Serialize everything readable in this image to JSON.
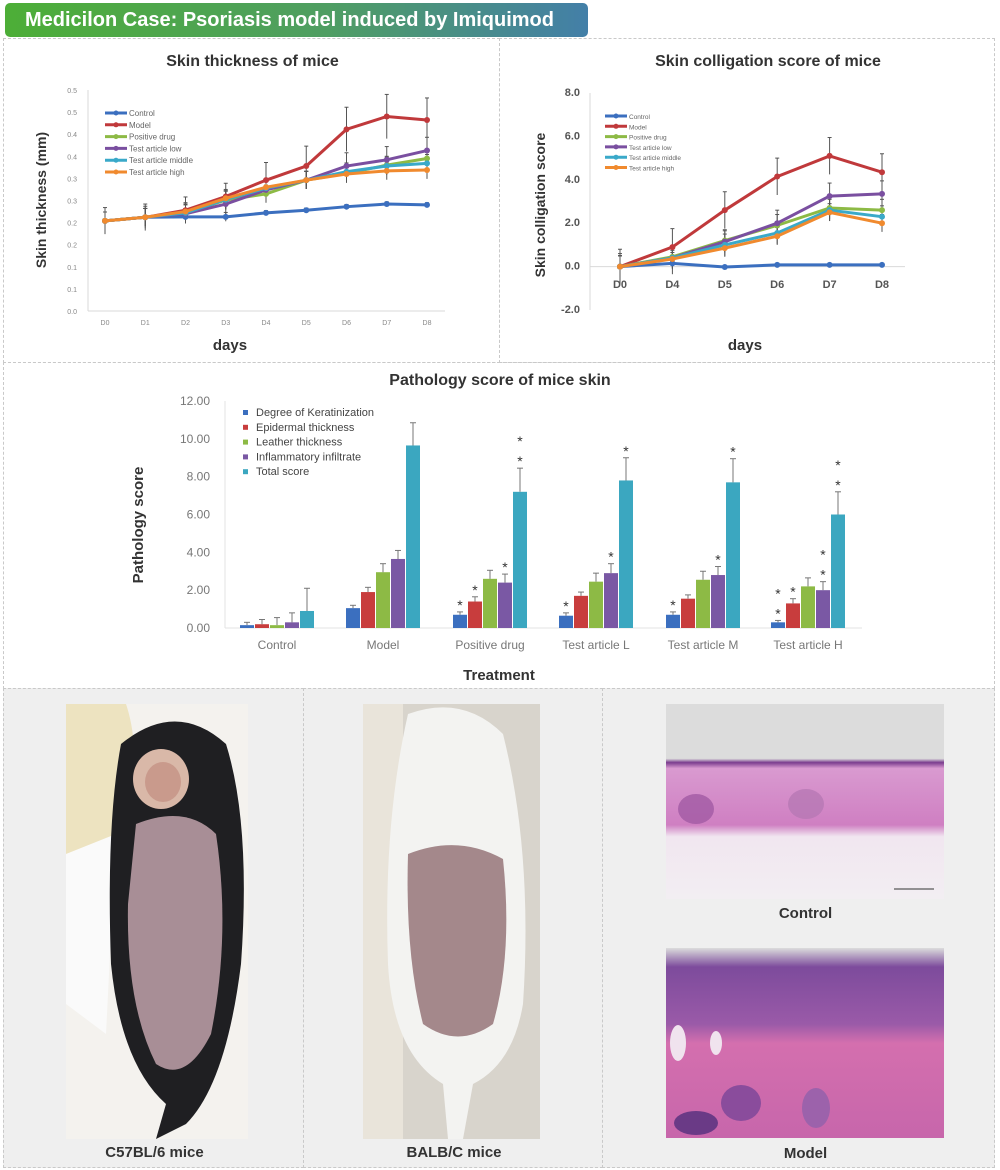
{
  "banner": {
    "title": "Medicilon Case: Psoriasis model induced by Imiquimod",
    "colors": [
      "#4dae37",
      "#437fa8"
    ]
  },
  "chart_data": [
    {
      "type": "line",
      "title": "Skin thickness of mice",
      "xlabel": "days",
      "ylabel": "Skin thickness (mm)",
      "categories": [
        "D0",
        "D1",
        "D2",
        "D3",
        "D4",
        "D5",
        "D6",
        "D7",
        "D8"
      ],
      "ylim": [
        0,
        0.5
      ],
      "ytick_labels": [
        "0.0",
        "0.1",
        "0.1",
        "0.2",
        "0.2",
        "0.3",
        "0.3",
        "0.4",
        "0.4",
        "0.5",
        "0.5"
      ],
      "legend": "top-left",
      "grid": false,
      "series": [
        {
          "name": "Control",
          "color": "#3b6fbf",
          "values": [
            0.204,
            0.212,
            0.213,
            0.213,
            0.222,
            0.228,
            0.236,
            0.242,
            0.24
          ],
          "errors": [
            0.03,
            0.03,
            0.01,
            0.01,
            0.005,
            0.005,
            0.005,
            0.005,
            0.005
          ]
        },
        {
          "name": "Model",
          "color": "#c0393b",
          "values": [
            0.204,
            0.212,
            0.228,
            0.259,
            0.296,
            0.328,
            0.411,
            0.44,
            0.432
          ],
          "errors": [
            0.02,
            0.025,
            0.03,
            0.03,
            0.04,
            0.045,
            0.05,
            0.05,
            0.05
          ]
        },
        {
          "name": "Positive drug",
          "color": "#8dba45",
          "values": [
            0.204,
            0.212,
            0.222,
            0.251,
            0.265,
            0.296,
            0.311,
            0.33,
            0.345
          ],
          "errors": [
            0.02,
            0.02,
            0.02,
            0.02,
            0.02,
            0.02,
            0.02,
            0.02,
            0.02
          ]
        },
        {
          "name": "Test article low",
          "color": "#7a4fa0",
          "values": [
            0.204,
            0.212,
            0.22,
            0.242,
            0.274,
            0.296,
            0.328,
            0.342,
            0.363
          ],
          "errors": [
            0.02,
            0.02,
            0.02,
            0.03,
            0.02,
            0.02,
            0.03,
            0.03,
            0.03
          ]
        },
        {
          "name": "Test article middle",
          "color": "#3aa9c9",
          "values": [
            0.204,
            0.212,
            0.222,
            0.252,
            0.278,
            0.296,
            0.315,
            0.328,
            0.334
          ],
          "errors": [
            0.02,
            0.02,
            0.02,
            0.02,
            0.02,
            0.02,
            0.02,
            0.02,
            0.02
          ]
        },
        {
          "name": "Test article high",
          "color": "#f08a2e",
          "values": [
            0.204,
            0.212,
            0.225,
            0.255,
            0.28,
            0.296,
            0.31,
            0.317,
            0.319
          ],
          "errors": [
            0.02,
            0.02,
            0.02,
            0.02,
            0.02,
            0.02,
            0.02,
            0.02,
            0.02
          ]
        }
      ]
    },
    {
      "type": "line",
      "title": "Skin colligation score of mice",
      "xlabel": "days",
      "ylabel": "Skin colligation score",
      "categories": [
        "D0",
        "D4",
        "D5",
        "D6",
        "D7",
        "D8"
      ],
      "ylim": [
        -2.0,
        8.0
      ],
      "ytick_labels": [
        "-2.0",
        "0.0",
        "2.0",
        "4.0",
        "6.0",
        "8.0"
      ],
      "legend": "top-left",
      "grid": false,
      "series": [
        {
          "name": "Control",
          "color": "#3b6fbf",
          "values": [
            0,
            0.15,
            -0.02,
            0.08,
            0.08,
            0.08
          ],
          "errors": [
            0.8,
            0.5,
            0.05,
            0.05,
            0.05,
            0.05
          ]
        },
        {
          "name": "Model",
          "color": "#c0393b",
          "values": [
            0,
            0.9,
            2.6,
            4.15,
            5.1,
            4.35
          ],
          "errors": [
            0.6,
            0.85,
            0.85,
            0.85,
            0.85,
            0.85
          ]
        },
        {
          "name": "Positive drug",
          "color": "#8dba45",
          "values": [
            0,
            0.45,
            1.2,
            1.9,
            2.7,
            2.6
          ],
          "errors": [
            0.5,
            0.5,
            0.5,
            0.5,
            0.5,
            0.5
          ]
        },
        {
          "name": "Test article low",
          "color": "#7a4fa0",
          "values": [
            0,
            0.4,
            1.15,
            2.0,
            3.25,
            3.35
          ],
          "errors": [
            0.5,
            0.5,
            0.5,
            0.6,
            0.6,
            0.6
          ]
        },
        {
          "name": "Test article middle",
          "color": "#3aa9c9",
          "values": [
            0,
            0.4,
            1.0,
            1.55,
            2.6,
            2.3
          ],
          "errors": [
            0.5,
            0.5,
            0.5,
            0.5,
            0.5,
            0.5
          ]
        },
        {
          "name": "Test article high",
          "color": "#f08a2e",
          "values": [
            0,
            0.35,
            0.85,
            1.4,
            2.5,
            2.0
          ],
          "errors": [
            0.5,
            0.4,
            0.4,
            0.4,
            0.4,
            0.4
          ]
        }
      ]
    },
    {
      "type": "bar",
      "title": "Pathology score of mice skin",
      "xlabel": "Treatment",
      "ylabel": "Pathology score",
      "categories": [
        "Control",
        "Model",
        "Positive drug",
        "Test article L",
        "Test article M",
        "Test article H"
      ],
      "ylim": [
        0,
        12
      ],
      "ytick_labels": [
        "0.00",
        "2.00",
        "4.00",
        "6.00",
        "8.00",
        "10.00",
        "12.00"
      ],
      "legend": "top-left",
      "grid": false,
      "series": [
        {
          "name": "Degree of Keratinization",
          "color": "#3b6fbf",
          "values": [
            0.15,
            1.05,
            0.7,
            0.65,
            0.7,
            0.3
          ],
          "errors": [
            0.15,
            0.15,
            0.15,
            0.15,
            0.15,
            0.1
          ],
          "stars": [
            0,
            0,
            1,
            1,
            1,
            2
          ]
        },
        {
          "name": "Epidermal thickness",
          "color": "#c83d3d",
          "values": [
            0.2,
            1.9,
            1.4,
            1.7,
            1.55,
            1.3
          ],
          "errors": [
            0.25,
            0.25,
            0.25,
            0.2,
            0.2,
            0.25
          ],
          "stars": [
            0,
            0,
            1,
            0,
            0,
            1
          ]
        },
        {
          "name": "Leather thickness",
          "color": "#8dba45",
          "values": [
            0.15,
            2.95,
            2.6,
            2.45,
            2.55,
            2.2
          ],
          "errors": [
            0.4,
            0.45,
            0.45,
            0.45,
            0.45,
            0.45
          ],
          "stars": [
            0,
            0,
            0,
            0,
            0,
            0
          ]
        },
        {
          "name": "Inflammatory infiltrate",
          "color": "#7a58a4",
          "values": [
            0.3,
            3.65,
            2.4,
            2.9,
            2.8,
            2.0
          ],
          "errors": [
            0.5,
            0.45,
            0.45,
            0.5,
            0.45,
            0.45
          ],
          "stars": [
            0,
            0,
            1,
            1,
            1,
            2
          ]
        },
        {
          "name": "Total score",
          "color": "#3ba7c0",
          "values": [
            0.9,
            9.65,
            7.2,
            7.8,
            7.7,
            6.0
          ],
          "errors": [
            1.2,
            1.2,
            1.25,
            1.2,
            1.25,
            1.2
          ],
          "stars": [
            0,
            0,
            2,
            1,
            1,
            2
          ]
        }
      ]
    }
  ],
  "photos": {
    "c57": "C57BL/6 mice",
    "balbc": "BALB/C mice",
    "histo_control": "Control",
    "histo_model": "Model"
  }
}
